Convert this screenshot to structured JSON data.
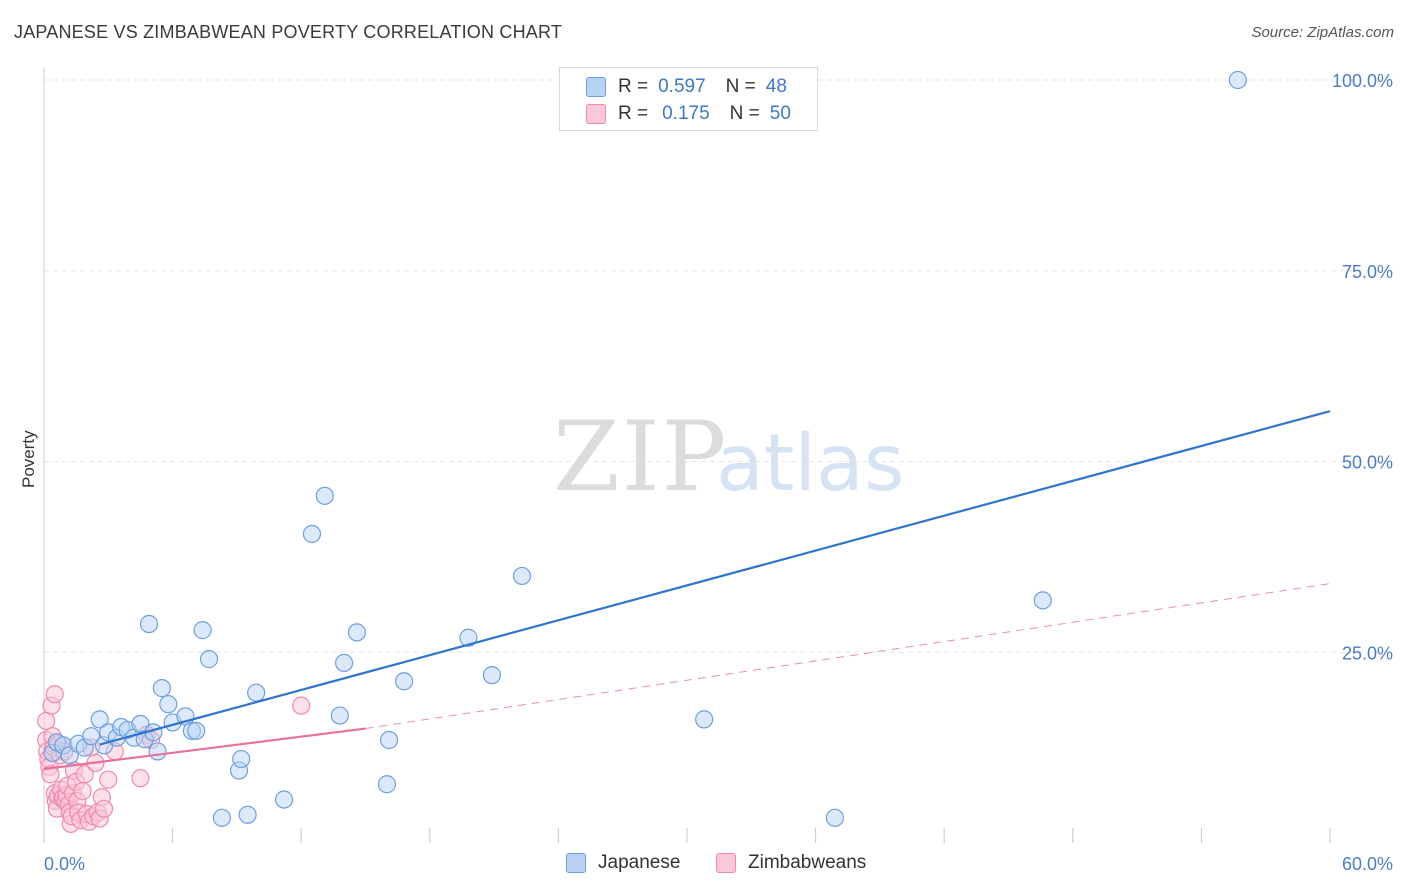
{
  "header": {
    "title": "JAPANESE VS ZIMBABWEAN POVERTY CORRELATION CHART",
    "source": "Source: ZipAtlas.com"
  },
  "watermark": {
    "zip": "ZIP",
    "atlas": "atlas"
  },
  "legend": {
    "items": [
      {
        "r_label": "R =",
        "r_value": "0.597",
        "n_label": "N =",
        "n_value": "48",
        "color": "#6d9fe0"
      },
      {
        "r_label": "R =",
        "r_value": "0.175",
        "n_label": "N =",
        "n_value": "50",
        "color": "#ef8aaa"
      }
    ]
  },
  "colors": {
    "blue_line": "#2f74cf",
    "blue_fill": "#b8d3f5",
    "pink_line": "#e8709a",
    "pink_fill": "#fbc8d7",
    "grid": "#e6e6e6",
    "tick_text": "#4a7cc9"
  },
  "chart_data": {
    "type": "scatter",
    "title": "JAPANESE VS ZIMBABWEAN POVERTY CORRELATION CHART",
    "xlabel": "",
    "ylabel": "Poverty",
    "xlim": [
      0,
      60
    ],
    "ylim": [
      0,
      102
    ],
    "x_tick_labels": [
      "0.0%",
      "60.0%"
    ],
    "y_ticks": [
      25,
      50,
      75,
      100
    ],
    "y_tick_labels": [
      "25.0%",
      "50.0%",
      "75.0%",
      "100.0%"
    ],
    "grid": true,
    "legend_position": "top-center",
    "series": [
      {
        "name": "Japanese",
        "color": "#6d9fe0",
        "points": [
          [
            0.4,
            11.8
          ],
          [
            0.6,
            13.2
          ],
          [
            0.9,
            12.8
          ],
          [
            1.2,
            11.5
          ],
          [
            1.6,
            13.0
          ],
          [
            1.9,
            12.5
          ],
          [
            2.2,
            14.0
          ],
          [
            2.6,
            16.2
          ],
          [
            2.8,
            12.8
          ],
          [
            3.0,
            14.5
          ],
          [
            3.4,
            13.8
          ],
          [
            3.6,
            15.2
          ],
          [
            3.9,
            14.8
          ],
          [
            4.2,
            13.8
          ],
          [
            4.5,
            15.6
          ],
          [
            4.7,
            13.6
          ],
          [
            4.9,
            28.7
          ],
          [
            5.1,
            14.5
          ],
          [
            5.3,
            12.0
          ],
          [
            5.5,
            20.3
          ],
          [
            5.8,
            18.2
          ],
          [
            6.0,
            15.8
          ],
          [
            6.6,
            16.6
          ],
          [
            6.9,
            14.7
          ],
          [
            7.1,
            14.7
          ],
          [
            7.4,
            27.9
          ],
          [
            7.7,
            24.1
          ],
          [
            8.3,
            3.3
          ],
          [
            9.1,
            9.5
          ],
          [
            9.2,
            11.0
          ],
          [
            9.5,
            3.7
          ],
          [
            9.9,
            19.7
          ],
          [
            11.2,
            5.7
          ],
          [
            12.5,
            40.5
          ],
          [
            13.1,
            45.5
          ],
          [
            13.8,
            16.7
          ],
          [
            14.0,
            23.6
          ],
          [
            14.6,
            27.6
          ],
          [
            16.0,
            7.7
          ],
          [
            16.1,
            13.5
          ],
          [
            16.8,
            21.2
          ],
          [
            19.8,
            26.9
          ],
          [
            20.9,
            22.0
          ],
          [
            22.3,
            35.0
          ],
          [
            30.8,
            16.2
          ],
          [
            36.9,
            3.3
          ],
          [
            46.6,
            31.8
          ],
          [
            55.7,
            100.0
          ]
        ],
        "trend": {
          "x": [
            2.6,
            60.0
          ],
          "y": [
            12.9,
            56.6
          ],
          "style": "solid"
        }
      },
      {
        "name": "Zimbabweans",
        "color": "#ef8aaa",
        "points": [
          [
            0.1,
            16.0
          ],
          [
            0.1,
            13.5
          ],
          [
            0.15,
            12.0
          ],
          [
            0.2,
            11.0
          ],
          [
            0.25,
            10.0
          ],
          [
            0.3,
            9.0
          ],
          [
            0.35,
            18.0
          ],
          [
            0.4,
            14.0
          ],
          [
            0.45,
            12.5
          ],
          [
            0.5,
            19.5
          ],
          [
            0.5,
            6.5
          ],
          [
            0.55,
            5.5
          ],
          [
            0.6,
            4.5
          ],
          [
            0.65,
            6.2
          ],
          [
            0.7,
            13.0
          ],
          [
            0.75,
            11.5
          ],
          [
            0.8,
            7.0
          ],
          [
            0.85,
            5.8
          ],
          [
            0.9,
            6.0
          ],
          [
            0.95,
            12.0
          ],
          [
            1.0,
            5.5
          ],
          [
            1.05,
            6.3
          ],
          [
            1.1,
            7.5
          ],
          [
            1.15,
            5.0
          ],
          [
            1.2,
            4.0
          ],
          [
            1.25,
            2.5
          ],
          [
            1.3,
            3.5
          ],
          [
            1.35,
            6.5
          ],
          [
            1.4,
            9.5
          ],
          [
            1.5,
            8.0
          ],
          [
            1.55,
            5.5
          ],
          [
            1.6,
            4.0
          ],
          [
            1.7,
            3.0
          ],
          [
            1.8,
            6.8
          ],
          [
            1.9,
            9.0
          ],
          [
            2.0,
            3.8
          ],
          [
            2.1,
            2.8
          ],
          [
            2.2,
            12.5
          ],
          [
            2.3,
            3.5
          ],
          [
            2.4,
            10.5
          ],
          [
            2.5,
            4.0
          ],
          [
            2.6,
            3.2
          ],
          [
            2.7,
            6.0
          ],
          [
            2.8,
            4.5
          ],
          [
            3.0,
            8.3
          ],
          [
            3.3,
            12.0
          ],
          [
            4.5,
            8.5
          ],
          [
            4.8,
            14.2
          ],
          [
            5.0,
            13.5
          ],
          [
            12.0,
            18.0
          ]
        ],
        "trend": {
          "x": [
            0.0,
            15.0
          ],
          "y": [
            9.7,
            15.0
          ],
          "style": "solid",
          "extended": {
            "x": [
              15.0,
              60.0
            ],
            "y": [
              15.0,
              34.0
            ],
            "style": "dashed"
          }
        }
      }
    ]
  }
}
